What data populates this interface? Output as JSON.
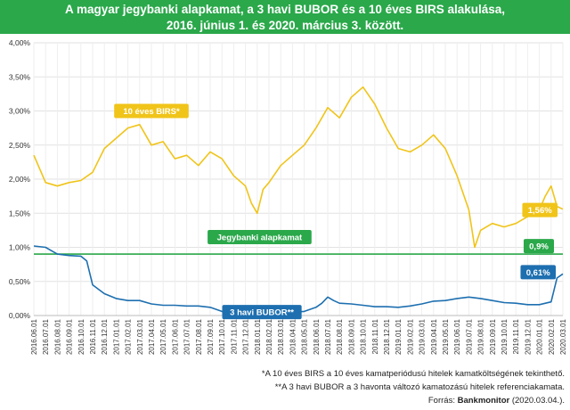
{
  "header": {
    "title_line1": "A magyar jegybanki alapkamat, a 3 havi BUBOR és a 10 éves BIRS alakulása,",
    "title_line2": "2016. június 1. és 2020. március 3. között."
  },
  "footnotes": {
    "note1": "*A 10 éves BIRS a 10 éves kamatperiódusú hitelek kamatköltségének tekinthető.",
    "note2": "**A 3 havi BUBOR a 3 havonta változó kamatozású hitelek referenciakamata.",
    "source_prefix": "Forrás: ",
    "source_brand": "Bankmonitor",
    "source_suffix": " (2020.03.04.)."
  },
  "colors": {
    "brand_green": "#2aa84a",
    "birs": "#f0c419",
    "bubor": "#1d6fb0",
    "base_rate": "#2aa84a"
  },
  "chart_data": {
    "type": "line",
    "title": "A magyar jegybanki alapkamat, a 3 havi BUBOR és a 10 éves BIRS alakulása, 2016. június 1. és 2020. március 3. között.",
    "xlabel": "",
    "ylabel": "",
    "ylim": [
      0,
      4
    ],
    "grid": true,
    "ytick_labels": [
      "0,00%",
      "0,50%",
      "1,00%",
      "1,50%",
      "2,00%",
      "2,50%",
      "3,00%",
      "3,50%",
      "4,00%"
    ],
    "x_categories": [
      "2016.06.01",
      "2016.07.01",
      "2016.08.01",
      "2016.09.01",
      "2016.10.01",
      "2016.11.01",
      "2016.12.01",
      "2017.01.01",
      "2017.02.01",
      "2017.03.01",
      "2017.04.01",
      "2017.05.01",
      "2017.06.01",
      "2017.07.01",
      "2017.08.01",
      "2017.09.01",
      "2017.10.01",
      "2017.11.01",
      "2017.12.01",
      "2018.01.01",
      "2018.02.01",
      "2018.03.01",
      "2018.04.01",
      "2018.05.01",
      "2018.06.01",
      "2018.07.01",
      "2018.08.01",
      "2018.09.01",
      "2018.10.01",
      "2018.11.01",
      "2018.12.01",
      "2019.01.01",
      "2019.02.01",
      "2019.03.01",
      "2019.04.01",
      "2019.05.01",
      "2019.06.01",
      "2019.07.01",
      "2019.08.01",
      "2019.09.01",
      "2019.10.01",
      "2019.11.01",
      "2019.12.01",
      "2020.01.01",
      "2020.02.01",
      "2020.03.01"
    ],
    "series": [
      {
        "name": "10 éves BIRS*",
        "color": "#f0c419",
        "end_label": "1,56%",
        "points": [
          [
            0,
            2.35
          ],
          [
            1,
            1.95
          ],
          [
            2,
            1.9
          ],
          [
            3,
            1.95
          ],
          [
            4,
            1.98
          ],
          [
            5,
            2.1
          ],
          [
            6,
            2.45
          ],
          [
            7,
            2.6
          ],
          [
            8,
            2.75
          ],
          [
            9,
            2.8
          ],
          [
            10,
            2.5
          ],
          [
            11,
            2.55
          ],
          [
            12,
            2.3
          ],
          [
            13,
            2.35
          ],
          [
            14,
            2.2
          ],
          [
            15,
            2.4
          ],
          [
            16,
            2.3
          ],
          [
            17,
            2.05
          ],
          [
            18,
            1.9
          ],
          [
            18.5,
            1.65
          ],
          [
            19,
            1.5
          ],
          [
            19.5,
            1.85
          ],
          [
            20,
            1.95
          ],
          [
            21,
            2.2
          ],
          [
            22,
            2.35
          ],
          [
            23,
            2.5
          ],
          [
            24,
            2.75
          ],
          [
            25,
            3.05
          ],
          [
            26,
            2.9
          ],
          [
            27,
            3.2
          ],
          [
            28,
            3.35
          ],
          [
            29,
            3.1
          ],
          [
            30,
            2.75
          ],
          [
            31,
            2.45
          ],
          [
            32,
            2.4
          ],
          [
            33,
            2.5
          ],
          [
            34,
            2.65
          ],
          [
            35,
            2.45
          ],
          [
            36,
            2.05
          ],
          [
            37,
            1.55
          ],
          [
            37.5,
            1.0
          ],
          [
            38,
            1.25
          ],
          [
            39,
            1.35
          ],
          [
            40,
            1.3
          ],
          [
            41,
            1.35
          ],
          [
            42,
            1.45
          ],
          [
            43,
            1.55
          ],
          [
            43.5,
            1.75
          ],
          [
            44,
            1.9
          ],
          [
            44.5,
            1.6
          ],
          [
            45,
            1.56
          ]
        ]
      },
      {
        "name": "Jegybanki alapkamat",
        "color": "#2aa84a",
        "end_label": "0,9%",
        "points": [
          [
            0,
            0.9
          ],
          [
            45,
            0.9
          ]
        ]
      },
      {
        "name": "3 havi BUBOR**",
        "color": "#1d6fb0",
        "end_label": "0,61%",
        "points": [
          [
            0,
            1.02
          ],
          [
            1,
            1.0
          ],
          [
            1.5,
            0.95
          ],
          [
            2,
            0.9
          ],
          [
            3,
            0.88
          ],
          [
            4,
            0.87
          ],
          [
            4.5,
            0.8
          ],
          [
            5,
            0.45
          ],
          [
            6,
            0.32
          ],
          [
            7,
            0.25
          ],
          [
            8,
            0.22
          ],
          [
            9,
            0.22
          ],
          [
            10,
            0.17
          ],
          [
            11,
            0.15
          ],
          [
            12,
            0.15
          ],
          [
            13,
            0.14
          ],
          [
            14,
            0.14
          ],
          [
            15,
            0.12
          ],
          [
            16,
            0.06
          ],
          [
            17,
            0.04
          ],
          [
            18,
            0.04
          ],
          [
            19,
            0.03
          ],
          [
            20,
            0.03
          ],
          [
            21,
            0.04
          ],
          [
            22,
            0.05
          ],
          [
            23,
            0.06
          ],
          [
            24,
            0.12
          ],
          [
            24.5,
            0.18
          ],
          [
            25,
            0.27
          ],
          [
            25.5,
            0.22
          ],
          [
            26,
            0.18
          ],
          [
            27,
            0.17
          ],
          [
            28,
            0.15
          ],
          [
            29,
            0.13
          ],
          [
            30,
            0.13
          ],
          [
            31,
            0.12
          ],
          [
            32,
            0.14
          ],
          [
            33,
            0.17
          ],
          [
            34,
            0.21
          ],
          [
            35,
            0.22
          ],
          [
            36,
            0.25
          ],
          [
            37,
            0.27
          ],
          [
            38,
            0.25
          ],
          [
            39,
            0.22
          ],
          [
            40,
            0.19
          ],
          [
            41,
            0.18
          ],
          [
            42,
            0.16
          ],
          [
            43,
            0.16
          ],
          [
            44,
            0.2
          ],
          [
            44.5,
            0.55
          ],
          [
            45,
            0.61
          ]
        ]
      }
    ]
  }
}
